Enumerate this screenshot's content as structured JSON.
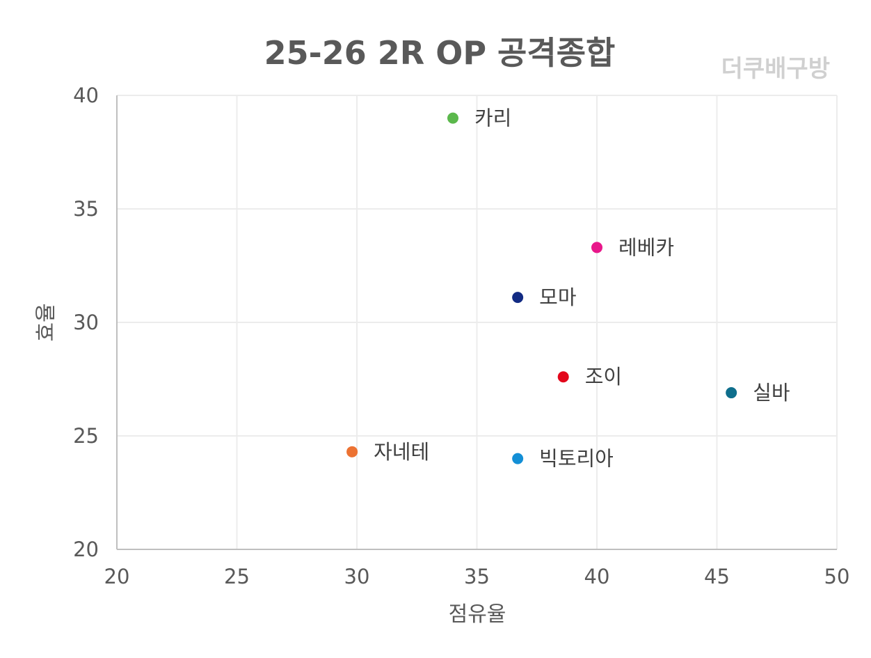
{
  "chart_data": {
    "type": "scatter",
    "title": "25-26 2R OP 공격종합",
    "watermark": "더쿠배구방",
    "xlabel": "점유율",
    "ylabel": "효율",
    "xlim": [
      20,
      50
    ],
    "ylim": [
      20,
      40
    ],
    "xticks": [
      "20",
      "25",
      "30",
      "35",
      "40",
      "45",
      "50"
    ],
    "yticks": [
      "20",
      "25",
      "30",
      "35",
      "40"
    ],
    "grid": true,
    "legend": "none",
    "points": [
      {
        "label": "카리",
        "x": 34.0,
        "y": 39.0,
        "color": "#5bb84c"
      },
      {
        "label": "레베카",
        "x": 40.0,
        "y": 33.3,
        "color": "#e8178a"
      },
      {
        "label": "모마",
        "x": 36.7,
        "y": 31.1,
        "color": "#122b83"
      },
      {
        "label": "조이",
        "x": 38.6,
        "y": 27.6,
        "color": "#e3061b"
      },
      {
        "label": "실바",
        "x": 45.6,
        "y": 26.9,
        "color": "#0e6e8c"
      },
      {
        "label": "자네테",
        "x": 29.8,
        "y": 24.3,
        "color": "#ec7232"
      },
      {
        "label": "빅토리아",
        "x": 36.7,
        "y": 24.0,
        "color": "#138fd6"
      }
    ]
  }
}
